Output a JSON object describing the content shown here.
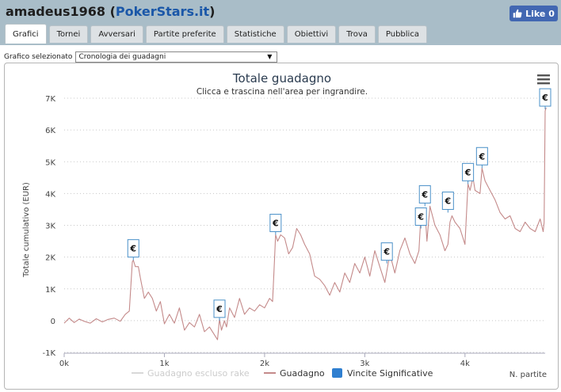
{
  "header": {
    "user": "amadeus1968",
    "open_paren": " (",
    "site": "PokerStars.it",
    "close_paren": ")",
    "like_label": "Like 0"
  },
  "tabs": [
    {
      "label": "Grafici",
      "active": true
    },
    {
      "label": "Tornei"
    },
    {
      "label": "Avversari"
    },
    {
      "label": "Partite preferite"
    },
    {
      "label": "Statistiche"
    },
    {
      "label": "Obiettivi"
    },
    {
      "label": "Trova"
    },
    {
      "label": "Pubblica"
    }
  ],
  "selector": {
    "label": "Grafico selezionato",
    "value": "Cronologia dei guadagni"
  },
  "menu_icon": "hamburger-icon",
  "colors": {
    "line": "#c48a8a",
    "excluded": "#d8d8d8",
    "badge_border": "#4a90c8",
    "badge_fill": "#2f7fd0"
  },
  "chart_data": {
    "type": "line",
    "title": "Totale guadagno",
    "subtitle": "Clicca e trascina nell'area per ingrandire.",
    "ylabel": "Totale cumulativo (EUR)",
    "xlabel": "N. partite",
    "ylim": [
      -1000,
      7000
    ],
    "xlim": [
      0,
      4800
    ],
    "x_ticks": [
      {
        "v": 0,
        "label": "0k"
      },
      {
        "v": 1000,
        "label": "1k"
      },
      {
        "v": 2000,
        "label": "2k"
      },
      {
        "v": 3000,
        "label": "3k"
      },
      {
        "v": 4000,
        "label": "4k"
      }
    ],
    "y_ticks": [
      {
        "v": -1000,
        "label": "-1K"
      },
      {
        "v": 0,
        "label": "0"
      },
      {
        "v": 1000,
        "label": "1K"
      },
      {
        "v": 2000,
        "label": "2K"
      },
      {
        "v": 3000,
        "label": "3K"
      },
      {
        "v": 4000,
        "label": "4K"
      },
      {
        "v": 5000,
        "label": "5K"
      },
      {
        "v": 6000,
        "label": "6K"
      },
      {
        "v": 7000,
        "label": "7K"
      }
    ],
    "grid": true,
    "legend_position": "bottom",
    "series": [
      {
        "name": "Guadagno escluso rake",
        "visible": false,
        "values": []
      },
      {
        "name": "Guadagno",
        "x": [
          0,
          50,
          100,
          150,
          200,
          260,
          320,
          380,
          440,
          500,
          560,
          610,
          650,
          680,
          690,
          710,
          740,
          760,
          800,
          840,
          880,
          920,
          960,
          1000,
          1050,
          1100,
          1150,
          1200,
          1250,
          1300,
          1350,
          1400,
          1450,
          1500,
          1530,
          1550,
          1570,
          1600,
          1620,
          1650,
          1700,
          1750,
          1800,
          1850,
          1900,
          1950,
          2000,
          2050,
          2080,
          2100,
          2110,
          2130,
          2160,
          2200,
          2240,
          2280,
          2320,
          2360,
          2400,
          2450,
          2500,
          2550,
          2600,
          2650,
          2700,
          2750,
          2800,
          2850,
          2900,
          2950,
          3000,
          3050,
          3100,
          3150,
          3200,
          3250,
          3300,
          3350,
          3400,
          3450,
          3500,
          3540,
          3560,
          3580,
          3600,
          3620,
          3650,
          3700,
          3750,
          3800,
          3830,
          3850,
          3870,
          3900,
          3950,
          4000,
          4030,
          4050,
          4080,
          4100,
          4150,
          4170,
          4200,
          4250,
          4300,
          4350,
          4400,
          4450,
          4500,
          4550,
          4600,
          4650,
          4700,
          4750,
          4780,
          4790,
          4800,
          4810
        ],
        "values": [
          -80,
          80,
          -60,
          50,
          -20,
          -80,
          60,
          -40,
          40,
          80,
          -20,
          200,
          300,
          1850,
          1900,
          1700,
          1700,
          1350,
          700,
          900,
          700,
          300,
          600,
          -100,
          200,
          -80,
          400,
          -300,
          -60,
          -200,
          200,
          -350,
          -200,
          -450,
          -600,
          50,
          -300,
          0,
          -200,
          400,
          100,
          700,
          200,
          400,
          300,
          500,
          400,
          700,
          600,
          2000,
          2700,
          2500,
          2700,
          2600,
          2100,
          2300,
          2900,
          2700,
          2400,
          2100,
          1400,
          1300,
          1100,
          800,
          1200,
          900,
          1500,
          1200,
          1800,
          1500,
          2000,
          1400,
          2200,
          1700,
          1200,
          2100,
          1500,
          2200,
          2600,
          2100,
          1800,
          2200,
          3300,
          3100,
          3500,
          2500,
          3600,
          3000,
          2700,
          2200,
          2400,
          3100,
          3300,
          3100,
          2900,
          2400,
          4300,
          4100,
          4500,
          4100,
          4000,
          4800,
          4400,
          4100,
          3800,
          3400,
          3200,
          3300,
          2900,
          2800,
          3100,
          2900,
          2800,
          3200,
          2800,
          3100,
          6600,
          6700
        ]
      },
      {
        "name": "Vincite Significative",
        "points": [
          {
            "x": 690,
            "y": 1900
          },
          {
            "x": 1550,
            "y": 0
          },
          {
            "x": 2110,
            "y": 2700
          },
          {
            "x": 3220,
            "y": 1800
          },
          {
            "x": 3560,
            "y": 2900
          },
          {
            "x": 3600,
            "y": 3600
          },
          {
            "x": 3830,
            "y": 3400
          },
          {
            "x": 4030,
            "y": 4300
          },
          {
            "x": 4170,
            "y": 4800
          },
          {
            "x": 4800,
            "y": 6650
          }
        ]
      }
    ],
    "badge_symbol": "€"
  }
}
